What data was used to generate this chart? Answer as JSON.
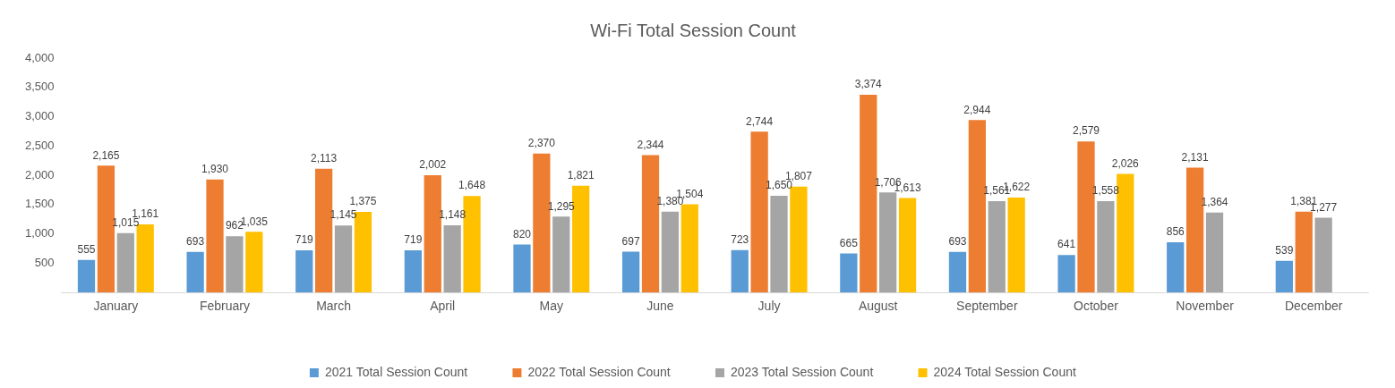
{
  "chart_data": {
    "type": "bar",
    "title": "Wi-Fi Total Session Count",
    "categories": [
      "January",
      "February",
      "March",
      "April",
      "May",
      "June",
      "July",
      "August",
      "September",
      "October",
      "November",
      "December"
    ],
    "series": [
      {
        "name": "2021 Total Session Count",
        "color": "#5b9bd5",
        "values": [
          555,
          693,
          719,
          719,
          820,
          697,
          723,
          665,
          693,
          641,
          856,
          539
        ],
        "value_labels": [
          "555",
          "693",
          "719",
          "719",
          "820",
          "697",
          "723",
          "665",
          "693",
          "641",
          "856",
          "539"
        ]
      },
      {
        "name": "2022 Total Session Count",
        "color": "#ed7d31",
        "values": [
          2165,
          1930,
          2113,
          2002,
          2370,
          2344,
          2744,
          3374,
          2944,
          2579,
          2131,
          1381
        ],
        "value_labels": [
          "2,165",
          "1,930",
          "2,113",
          "2,002",
          "2,370",
          "2,344",
          "2,744",
          "3,374",
          "2,944",
          "2,579",
          "2,131",
          "1,381"
        ]
      },
      {
        "name": "2023 Total Session Count",
        "color": "#a5a5a5",
        "values": [
          1015,
          962,
          1145,
          1148,
          1295,
          1380,
          1650,
          1706,
          1561,
          1558,
          1364,
          1277
        ],
        "value_labels": [
          "1,015",
          "962",
          "1,145",
          "1,148",
          "1,295",
          "1,380",
          "1,650",
          "1,706",
          "1,561",
          "1,558",
          "1,364",
          "1,277"
        ]
      },
      {
        "name": "2024 Total Session Count",
        "color": "#ffc000",
        "values": [
          1161,
          1035,
          1375,
          1648,
          1821,
          1504,
          1807,
          1613,
          1622,
          2026,
          null,
          null
        ],
        "value_labels": [
          "1,161",
          "1,035",
          "1,375",
          "1,648",
          "1,821",
          "1,504",
          "1,807",
          "1,613",
          "1,622",
          "2,026",
          null,
          null
        ]
      }
    ],
    "ylim": [
      0,
      4000
    ],
    "yticks": [
      {
        "value": 0,
        "label": null
      },
      {
        "value": 500,
        "label": "500"
      },
      {
        "value": 1000,
        "label": "1,000"
      },
      {
        "value": 1500,
        "label": "1,500"
      },
      {
        "value": 2000,
        "label": "2,000"
      },
      {
        "value": 2500,
        "label": "2,500"
      },
      {
        "value": 3000,
        "label": "3,000"
      },
      {
        "value": 3500,
        "label": "3,500"
      },
      {
        "value": 4000,
        "label": "4,000"
      }
    ],
    "grid": false,
    "legend": "bottom"
  }
}
